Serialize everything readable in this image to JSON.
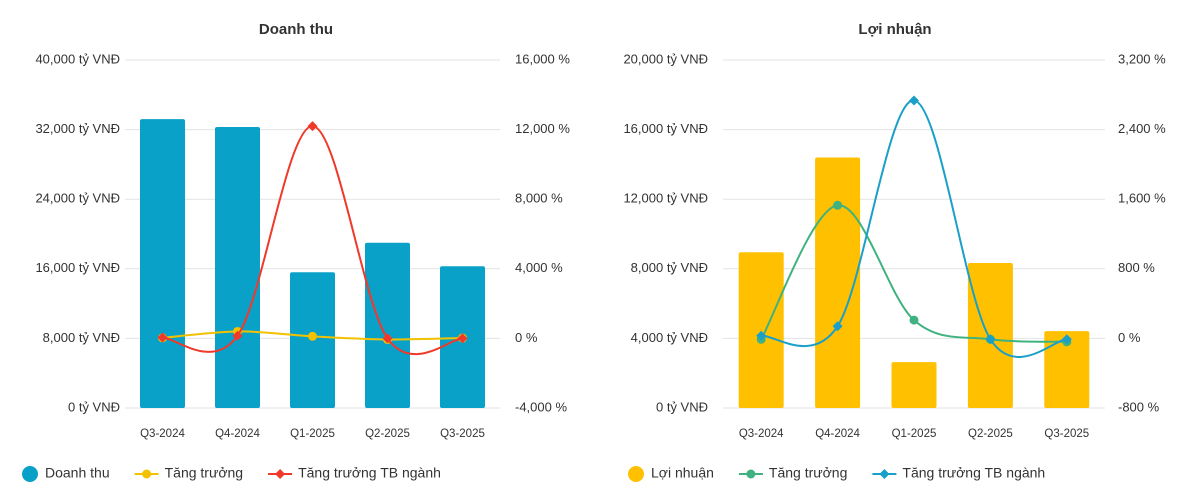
{
  "chart_data": [
    {
      "type": "combo",
      "title": "Doanh thu",
      "categories": [
        "Q3-2024",
        "Q4-2024",
        "Q1-2025",
        "Q2-2025",
        "Q3-2025"
      ],
      "series": [
        {
          "name": "Doanh thu",
          "type": "bar",
          "color": "#0aa1c9",
          "values": [
            33200,
            32300,
            15600,
            19000,
            16300
          ]
        },
        {
          "name": "Tăng trưởng",
          "type": "line",
          "axis": "y2",
          "marker": "circle",
          "color": "#f2c100",
          "values": [
            30,
            400,
            120,
            -60,
            20
          ]
        },
        {
          "name": "Tăng trưởng TB ngành",
          "type": "line",
          "axis": "y2",
          "marker": "diamond",
          "color": "#f0392b",
          "values": [
            50,
            150,
            12200,
            0,
            0
          ]
        }
      ],
      "ylim": [
        0,
        40000
      ],
      "yticks": [
        {
          "value": 0,
          "label": "0 tỷ VNĐ"
        },
        {
          "value": 8000,
          "label": "8,000 tỷ VNĐ"
        },
        {
          "value": 16000,
          "label": "16,000 tỷ VNĐ"
        },
        {
          "value": 24000,
          "label": "24,000 tỷ VNĐ"
        },
        {
          "value": 32000,
          "label": "32,000 tỷ VNĐ"
        },
        {
          "value": 40000,
          "label": "40,000 tỷ VNĐ"
        }
      ],
      "y2lim": [
        -4000,
        16000
      ],
      "y2ticks": [
        {
          "value": -4000,
          "label": "-4,000 %"
        },
        {
          "value": 0,
          "label": "0 %"
        },
        {
          "value": 4000,
          "label": "4,000 %"
        },
        {
          "value": 8000,
          "label": "8,000 %"
        },
        {
          "value": 12000,
          "label": "12,000 %"
        },
        {
          "value": 16000,
          "label": "16,000 %"
        }
      ],
      "grid": true
    },
    {
      "type": "combo",
      "title": "Lợi nhuận",
      "categories": [
        "Q3-2024",
        "Q4-2024",
        "Q1-2025",
        "Q2-2025",
        "Q3-2025"
      ],
      "series": [
        {
          "name": "Lợi nhuận",
          "type": "bar",
          "color": "#ffc000",
          "values": [
            8950,
            14400,
            2640,
            8330,
            4420
          ]
        },
        {
          "name": "Tăng trưởng",
          "type": "line",
          "axis": "y2",
          "marker": "circle",
          "color": "#3fb27f",
          "values": [
            -10,
            1530,
            210,
            -10,
            -40
          ]
        },
        {
          "name": "Tăng trưởng TB ngành",
          "type": "line",
          "axis": "y2",
          "marker": "diamond",
          "color": "#1aa0c8",
          "values": [
            30,
            140,
            2735,
            -10,
            -10
          ]
        }
      ],
      "ylim": [
        0,
        20000
      ],
      "yticks": [
        {
          "value": 0,
          "label": "0 tỷ VNĐ"
        },
        {
          "value": 4000,
          "label": "4,000 tỷ VNĐ"
        },
        {
          "value": 8000,
          "label": "8,000 tỷ VNĐ"
        },
        {
          "value": 12000,
          "label": "12,000 tỷ VNĐ"
        },
        {
          "value": 16000,
          "label": "16,000 tỷ VNĐ"
        },
        {
          "value": 20000,
          "label": "20,000 tỷ VNĐ"
        }
      ],
      "y2lim": [
        -800,
        3200
      ],
      "y2ticks": [
        {
          "value": -800,
          "label": "-800 %"
        },
        {
          "value": 0,
          "label": "0 %"
        },
        {
          "value": 800,
          "label": "800 %"
        },
        {
          "value": 1600,
          "label": "1,600 %"
        },
        {
          "value": 2400,
          "label": "2,400 %"
        },
        {
          "value": 3200,
          "label": "3,200 %"
        }
      ],
      "grid": true
    }
  ]
}
